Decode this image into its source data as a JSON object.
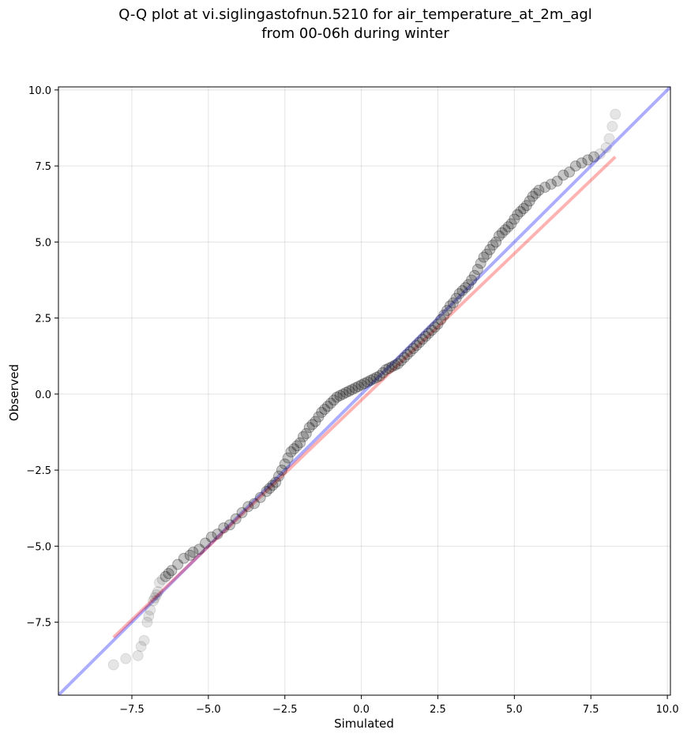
{
  "chart_data": {
    "type": "scatter",
    "title": "Q-Q plot at vi.siglingastofnun.5210 for air_temperature_at_2m_agl",
    "subtitle": "from 00-06h during winter",
    "xlabel": "Simulated",
    "ylabel": "Observed",
    "xlim": [
      -9.9,
      10.1
    ],
    "ylim": [
      -9.9,
      10.1
    ],
    "x_ticks": [
      -7.5,
      -5.0,
      -2.5,
      0.0,
      2.5,
      5.0,
      7.5,
      10.0
    ],
    "y_ticks": [
      -7.5,
      -5.0,
      -2.5,
      0.0,
      2.5,
      5.0,
      7.5,
      10.0
    ],
    "x_tick_labels": [
      "−7.5",
      "−5.0",
      "−2.5",
      "0.0",
      "2.5",
      "5.0",
      "7.5",
      "10.0"
    ],
    "y_tick_labels": [
      "−7.5",
      "−5.0",
      "−2.5",
      "0.0",
      "2.5",
      "5.0",
      "7.5",
      "10.0"
    ],
    "grid": true,
    "marker_color": "#000000",
    "identity_line_color": "#0000ff",
    "fit_line_color": "#ff0000",
    "fit_line": {
      "x": [
        -8.1,
        8.3
      ],
      "y": [
        -8.0,
        7.8
      ]
    },
    "points": {
      "x": [
        -8.1,
        -7.7,
        -7.3,
        -7.2,
        -7.1,
        -7.0,
        -6.95,
        -6.9,
        -6.8,
        -6.75,
        -6.7,
        -6.65,
        -6.6,
        -6.5,
        -6.4,
        -6.3,
        -6.2,
        -6.0,
        -5.8,
        -5.6,
        -5.5,
        -5.3,
        -5.1,
        -4.9,
        -4.7,
        -4.5,
        -4.3,
        -4.1,
        -3.9,
        -3.7,
        -3.5,
        -3.3,
        -3.1,
        -3.0,
        -2.9,
        -2.8,
        -2.7,
        -2.6,
        -2.5,
        -2.4,
        -2.3,
        -2.2,
        -2.1,
        -2.0,
        -1.9,
        -1.8,
        -1.7,
        -1.6,
        -1.5,
        -1.4,
        -1.3,
        -1.2,
        -1.1,
        -1.0,
        -0.9,
        -0.8,
        -0.7,
        -0.6,
        -0.5,
        -0.4,
        -0.3,
        -0.2,
        -0.1,
        0.0,
        0.1,
        0.2,
        0.3,
        0.4,
        0.5,
        0.6,
        0.7,
        0.8,
        0.9,
        1.0,
        1.1,
        1.2,
        1.3,
        1.4,
        1.5,
        1.6,
        1.7,
        1.8,
        1.9,
        2.0,
        2.1,
        2.2,
        2.3,
        2.4,
        2.5,
        2.6,
        2.7,
        2.8,
        2.9,
        3.0,
        3.1,
        3.2,
        3.3,
        3.4,
        3.5,
        3.6,
        3.7,
        3.8,
        3.9,
        4.0,
        4.1,
        4.2,
        4.3,
        4.4,
        4.5,
        4.6,
        4.7,
        4.8,
        4.9,
        5.0,
        5.1,
        5.2,
        5.3,
        5.4,
        5.5,
        5.6,
        5.7,
        5.8,
        6.0,
        6.2,
        6.4,
        6.6,
        6.8,
        7.0,
        7.2,
        7.4,
        7.6,
        7.8,
        8.0,
        8.1,
        8.2,
        8.3
      ],
      "y": [
        -8.9,
        -8.7,
        -8.6,
        -8.3,
        -8.1,
        -7.5,
        -7.3,
        -7.1,
        -6.8,
        -6.7,
        -6.6,
        -6.5,
        -6.2,
        -6.1,
        -6.0,
        -5.9,
        -5.8,
        -5.6,
        -5.4,
        -5.3,
        -5.2,
        -5.1,
        -4.9,
        -4.7,
        -4.6,
        -4.4,
        -4.3,
        -4.1,
        -3.9,
        -3.7,
        -3.6,
        -3.4,
        -3.2,
        -3.1,
        -3.0,
        -2.9,
        -2.7,
        -2.5,
        -2.3,
        -2.1,
        -1.9,
        -1.8,
        -1.7,
        -1.6,
        -1.4,
        -1.3,
        -1.1,
        -1.0,
        -0.9,
        -0.75,
        -0.6,
        -0.5,
        -0.4,
        -0.3,
        -0.2,
        -0.1,
        -0.05,
        0.0,
        0.05,
        0.1,
        0.15,
        0.2,
        0.25,
        0.3,
        0.35,
        0.4,
        0.45,
        0.5,
        0.55,
        0.6,
        0.7,
        0.8,
        0.85,
        0.9,
        0.95,
        1.0,
        1.1,
        1.2,
        1.3,
        1.4,
        1.5,
        1.6,
        1.7,
        1.8,
        1.9,
        2.0,
        2.1,
        2.2,
        2.3,
        2.45,
        2.6,
        2.75,
        2.9,
        3.0,
        3.15,
        3.3,
        3.4,
        3.5,
        3.6,
        3.75,
        3.9,
        4.1,
        4.3,
        4.5,
        4.6,
        4.75,
        4.9,
        5.0,
        5.2,
        5.3,
        5.4,
        5.5,
        5.6,
        5.75,
        5.9,
        6.0,
        6.1,
        6.2,
        6.35,
        6.5,
        6.6,
        6.7,
        6.8,
        6.9,
        7.0,
        7.2,
        7.3,
        7.5,
        7.6,
        7.7,
        7.8,
        7.9,
        8.1,
        8.4,
        8.8,
        9.2
      ]
    }
  }
}
